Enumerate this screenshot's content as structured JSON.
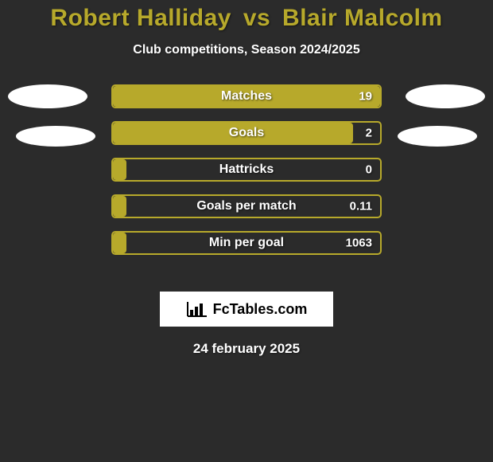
{
  "colors": {
    "background": "#2b2b2b",
    "title": "#b7a92b",
    "subtitle": "#ffffff",
    "barFill": "#b7a92b",
    "barBorder": "#b7a92b",
    "barLabel": "#ffffff",
    "barValue": "#ffffff",
    "avatar": "#ffffff",
    "brandBg": "#ffffff",
    "brandText": "#000000",
    "dateText": "#ffffff"
  },
  "title": {
    "player1": "Robert Halliday",
    "vs": "vs",
    "player2": "Blair Malcolm",
    "fontsize": 30
  },
  "subtitle": {
    "text": "Club competitions, Season 2024/2025",
    "fontsize": 16
  },
  "stats": {
    "labelFontsize": 16,
    "valueFontsize": 15,
    "barHeight": 30,
    "barGap": 16,
    "barRadius": 5,
    "rows": [
      {
        "label": "Matches",
        "value": "19",
        "fillPercent": 100
      },
      {
        "label": "Goals",
        "value": "2",
        "fillPercent": 90
      },
      {
        "label": "Hattricks",
        "value": "0",
        "fillPercent": 5
      },
      {
        "label": "Goals per match",
        "value": "0.11",
        "fillPercent": 5
      },
      {
        "label": "Min per goal",
        "value": "1063",
        "fillPercent": 5
      }
    ]
  },
  "brand": {
    "text": "FcTables.com",
    "fontsize": 18
  },
  "date": {
    "text": "24 february 2025",
    "fontsize": 17
  }
}
